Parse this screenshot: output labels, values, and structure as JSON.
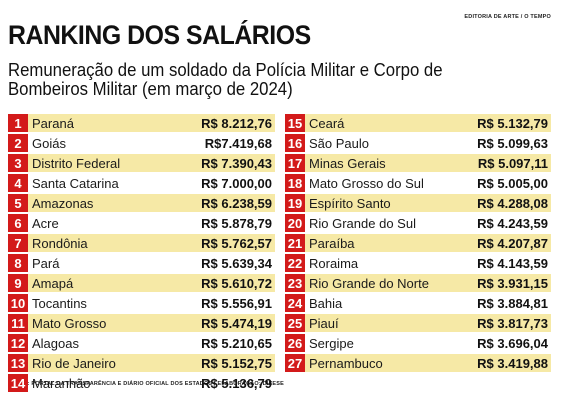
{
  "credit": "EDITORIA DE ARTE / O TEMPO",
  "title": "RANKING DOS SALÁRIOS",
  "subtitle": "Remuneração de um soldado da Polícia Militar e Corpo de Bombeiros Militar (em março de 2024)",
  "source": "FONTE: PORTAL DA TRANSPARÊNCIA E DIÁRIO OFICIAL DOS ESTADOS / ELABORAÇÃO: DIEESE",
  "colors": {
    "rank_bg": "#d31a1a",
    "row_shade": "#f6e9a6",
    "text": "#1a1a1a"
  },
  "chart_data": {
    "type": "table",
    "title": "RANKING DOS SALÁRIOS",
    "subtitle": "Remuneração de um soldado da Polícia Militar e Corpo de Bombeiros Militar (em março de 2024)",
    "columns": [
      "rank",
      "state",
      "salary"
    ],
    "rows": [
      {
        "rank": "1",
        "state": "Paraná",
        "salary": "R$ 8.212,76",
        "value": 8212.76
      },
      {
        "rank": "2",
        "state": "Goiás",
        "salary": "R$7.419,68",
        "value": 7419.68
      },
      {
        "rank": "3",
        "state": "Distrito Federal",
        "salary": "R$ 7.390,43",
        "value": 7390.43
      },
      {
        "rank": "4",
        "state": "Santa Catarina",
        "salary": "R$ 7.000,00",
        "value": 7000.0
      },
      {
        "rank": "5",
        "state": "Amazonas",
        "salary": "R$ 6.238,59",
        "value": 6238.59
      },
      {
        "rank": "6",
        "state": "Acre",
        "salary": "R$ 5.878,79",
        "value": 5878.79
      },
      {
        "rank": "7",
        "state": "Rondônia",
        "salary": "R$ 5.762,57",
        "value": 5762.57
      },
      {
        "rank": "8",
        "state": "Pará",
        "salary": "R$ 5.639,34",
        "value": 5639.34
      },
      {
        "rank": "9",
        "state": "Amapá",
        "salary": "R$ 5.610,72",
        "value": 5610.72
      },
      {
        "rank": "10",
        "state": "Tocantins",
        "salary": "R$ 5.556,91",
        "value": 5556.91
      },
      {
        "rank": "11",
        "state": "Mato Grosso",
        "salary": "R$ 5.474,19",
        "value": 5474.19
      },
      {
        "rank": "12",
        "state": "Alagoas",
        "salary": "R$ 5.210,65",
        "value": 5210.65
      },
      {
        "rank": "13",
        "state": "Rio de Janeiro",
        "salary": "R$ 5.152,75",
        "value": 5152.75
      },
      {
        "rank": "14",
        "state": "Maranhão",
        "salary": "R$ 5.136,79",
        "value": 5136.79
      },
      {
        "rank": "15",
        "state": "Ceará",
        "salary": "R$ 5.132,79",
        "value": 5132.79
      },
      {
        "rank": "16",
        "state": "São Paulo",
        "salary": "R$ 5.099,63",
        "value": 5099.63
      },
      {
        "rank": "17",
        "state": "Minas Gerais",
        "salary": "R$ 5.097,11",
        "value": 5097.11
      },
      {
        "rank": "18",
        "state": "Mato Grosso do Sul",
        "salary": "R$ 5.005,00",
        "value": 5005.0
      },
      {
        "rank": "19",
        "state": "Espírito Santo",
        "salary": "R$ 4.288,08",
        "value": 4288.08
      },
      {
        "rank": "20",
        "state": "Rio Grande do Sul",
        "salary": "R$ 4.243,59",
        "value": 4243.59
      },
      {
        "rank": "21",
        "state": "Paraíba",
        "salary": "R$ 4.207,87",
        "value": 4207.87
      },
      {
        "rank": "22",
        "state": "Roraima",
        "salary": "R$ 4.143,59",
        "value": 4143.59
      },
      {
        "rank": "23",
        "state": "Rio Grande do Norte",
        "salary": "R$ 3.931,15",
        "value": 3931.15
      },
      {
        "rank": "24",
        "state": "Bahia",
        "salary": "R$ 3.884,81",
        "value": 3884.81
      },
      {
        "rank": "25",
        "state": "Piauí",
        "salary": "R$ 3.817,73",
        "value": 3817.73
      },
      {
        "rank": "26",
        "state": "Sergipe",
        "salary": "R$ 3.696,04",
        "value": 3696.04
      },
      {
        "rank": "27",
        "state": "Pernambuco",
        "salary": "R$ 3.419,88",
        "value": 3419.88
      }
    ]
  }
}
